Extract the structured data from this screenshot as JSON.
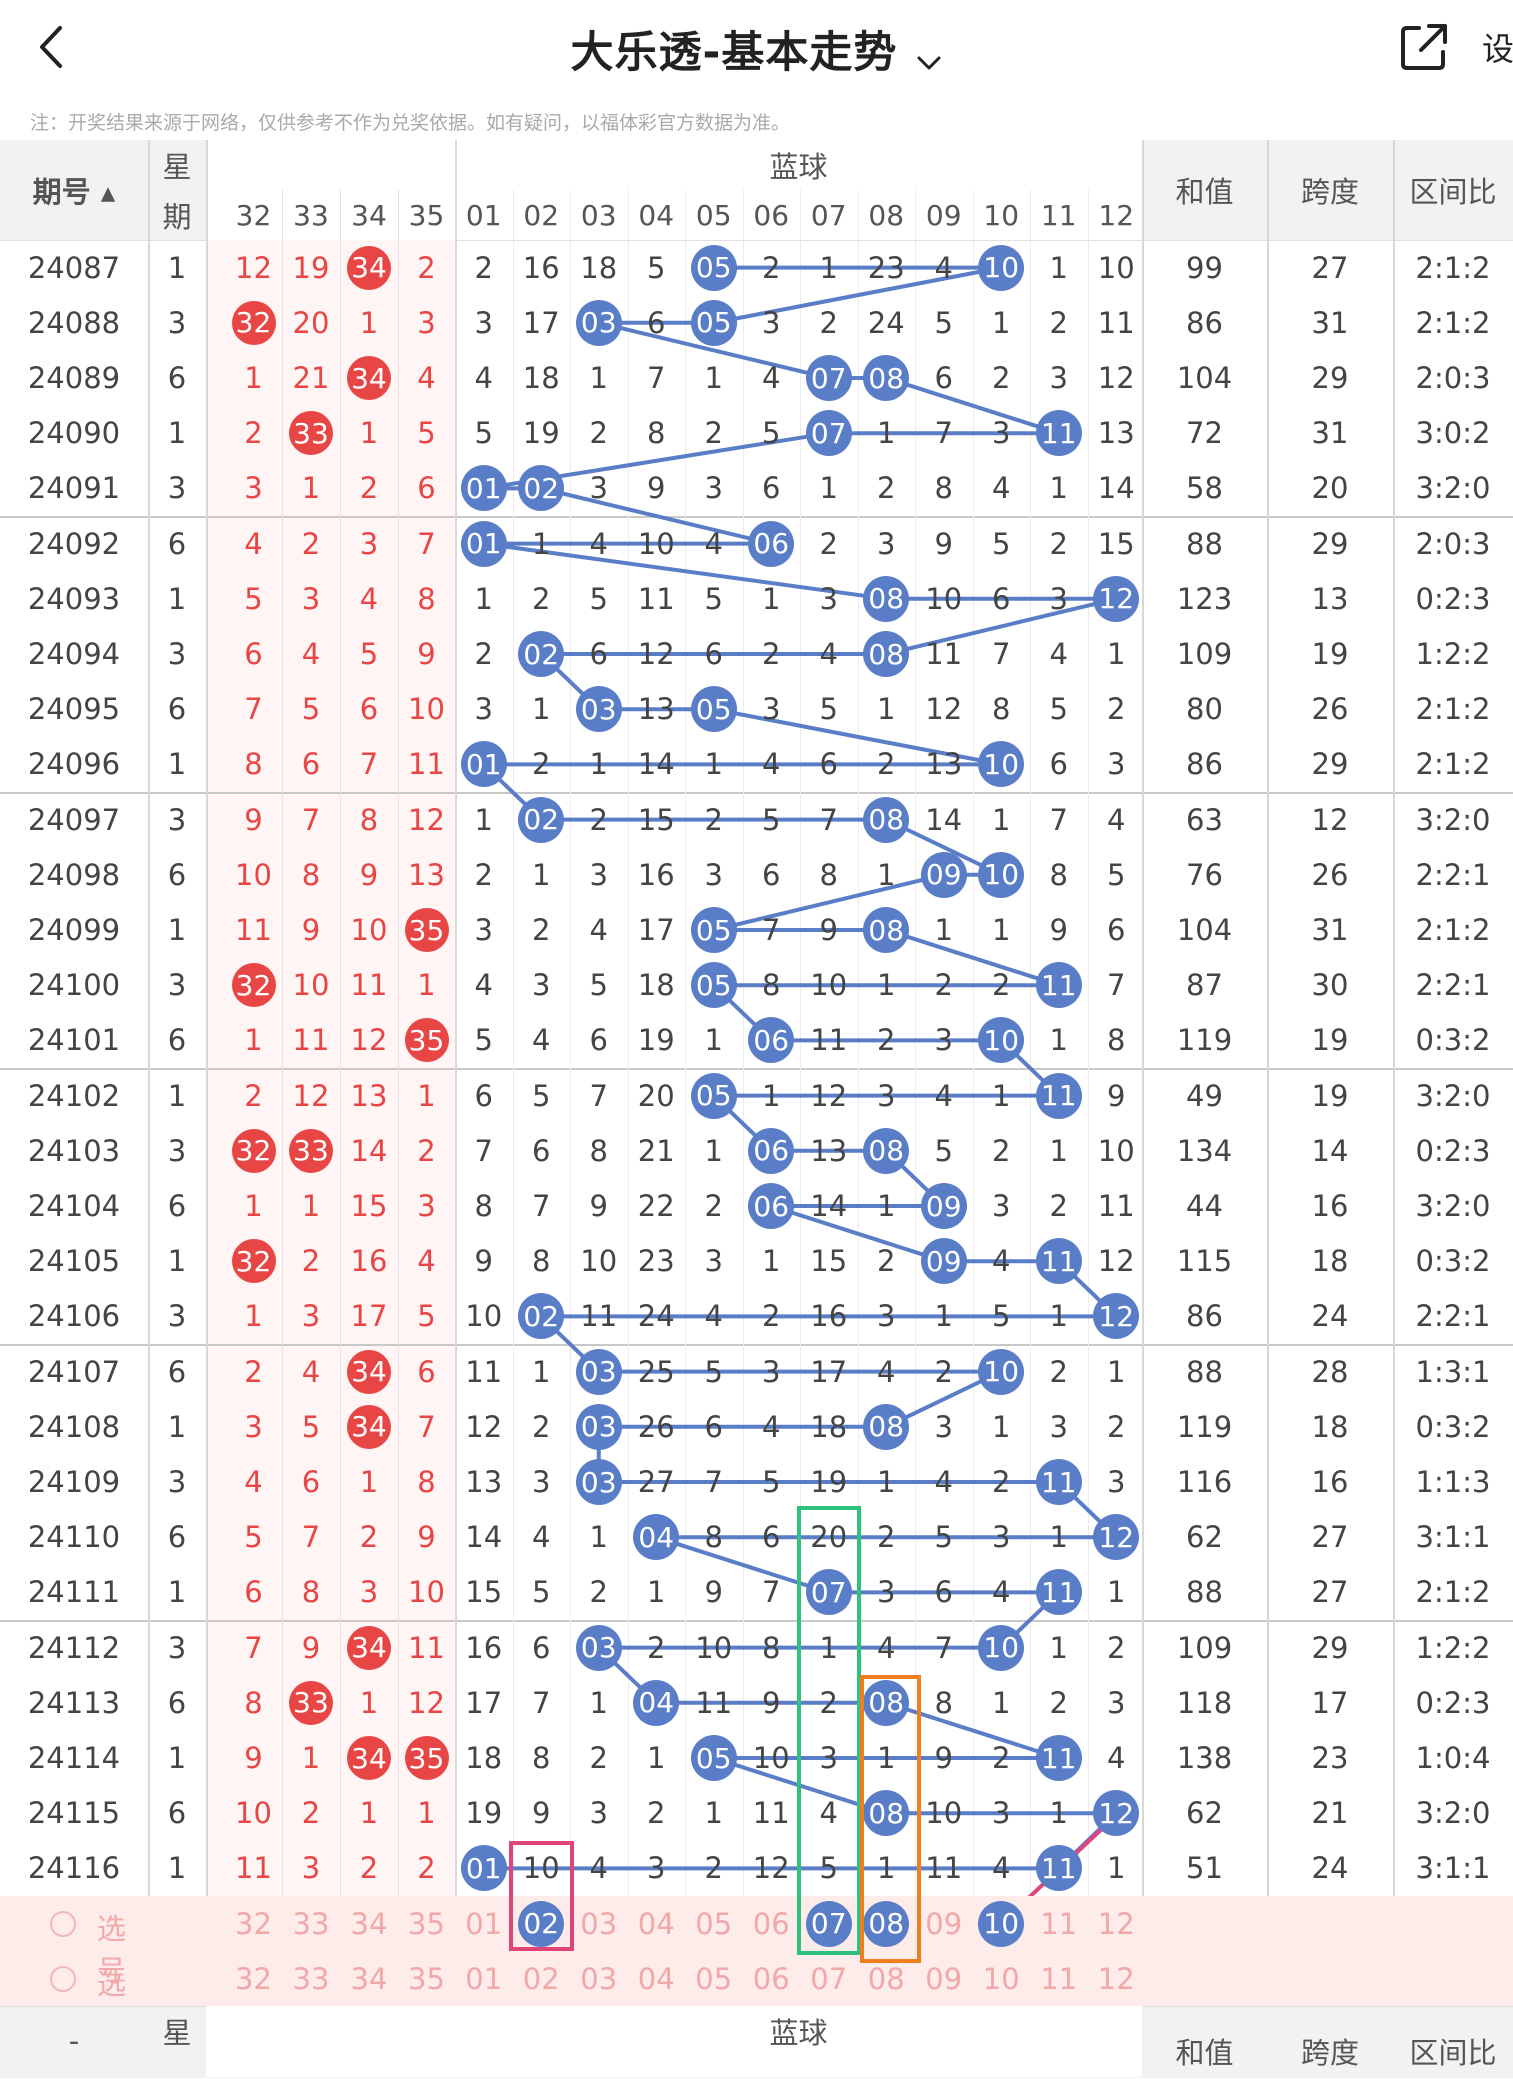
{
  "header": {
    "title": "大乐透-基本走势",
    "settings_label": "设",
    "notice": "注：开奖结果来源于网络，仅供参考不作为兑奖依据。如有疑问，以福体彩官方数据为准。"
  },
  "columns": {
    "issue": "期号",
    "week": "星期",
    "week_top": "星",
    "week_bottom": "期",
    "blue_group": "蓝球",
    "sum": "和值",
    "span": "跨度",
    "ratio": "区间比",
    "red_nums": [
      "32",
      "33",
      "34",
      "35"
    ],
    "blue_nums": [
      "01",
      "02",
      "03",
      "04",
      "05",
      "06",
      "07",
      "08",
      "09",
      "10",
      "11",
      "12"
    ]
  },
  "rows": [
    {
      "issue": "24087",
      "week": "1",
      "red": [
        "12",
        "19",
        "34",
        "2"
      ],
      "red_hit": [
        false,
        false,
        true,
        false
      ],
      "blue": [
        "2",
        "16",
        "18",
        "5",
        "05",
        "2",
        "1",
        "23",
        "4",
        "10",
        "1",
        "10"
      ],
      "blue_hit": [
        5,
        10
      ],
      "sum": "99",
      "span": "27",
      "ratio": "2:1:2"
    },
    {
      "issue": "24088",
      "week": "3",
      "red": [
        "32",
        "20",
        "1",
        "3"
      ],
      "red_hit": [
        true,
        false,
        false,
        false
      ],
      "blue": [
        "3",
        "17",
        "03",
        "6",
        "05",
        "3",
        "2",
        "24",
        "5",
        "1",
        "2",
        "11"
      ],
      "blue_hit": [
        3,
        5
      ],
      "sum": "86",
      "span": "31",
      "ratio": "2:1:2"
    },
    {
      "issue": "24089",
      "week": "6",
      "red": [
        "1",
        "21",
        "34",
        "4"
      ],
      "red_hit": [
        false,
        false,
        true,
        false
      ],
      "blue": [
        "4",
        "18",
        "1",
        "7",
        "1",
        "4",
        "07",
        "08",
        "6",
        "2",
        "3",
        "12"
      ],
      "blue_hit": [
        7,
        8
      ],
      "sum": "104",
      "span": "29",
      "ratio": "2:0:3"
    },
    {
      "issue": "24090",
      "week": "1",
      "red": [
        "2",
        "33",
        "1",
        "5"
      ],
      "red_hit": [
        false,
        true,
        false,
        false
      ],
      "blue": [
        "5",
        "19",
        "2",
        "8",
        "2",
        "5",
        "07",
        "1",
        "7",
        "3",
        "11",
        "13"
      ],
      "blue_hit": [
        7,
        11
      ],
      "sum": "72",
      "span": "31",
      "ratio": "3:0:2"
    },
    {
      "issue": "24091",
      "week": "3",
      "red": [
        "3",
        "1",
        "2",
        "6"
      ],
      "red_hit": [
        false,
        false,
        false,
        false
      ],
      "blue": [
        "01",
        "02",
        "3",
        "9",
        "3",
        "6",
        "1",
        "2",
        "8",
        "4",
        "1",
        "14"
      ],
      "blue_hit": [
        1,
        2
      ],
      "sum": "58",
      "span": "20",
      "ratio": "3:2:0"
    },
    {
      "issue": "24092",
      "week": "6",
      "red": [
        "4",
        "2",
        "3",
        "7"
      ],
      "red_hit": [
        false,
        false,
        false,
        false
      ],
      "blue": [
        "01",
        "1",
        "4",
        "10",
        "4",
        "06",
        "2",
        "3",
        "9",
        "5",
        "2",
        "15"
      ],
      "blue_hit": [
        1,
        6
      ],
      "sum": "88",
      "span": "29",
      "ratio": "2:0:3"
    },
    {
      "issue": "24093",
      "week": "1",
      "red": [
        "5",
        "3",
        "4",
        "8"
      ],
      "red_hit": [
        false,
        false,
        false,
        false
      ],
      "blue": [
        "1",
        "2",
        "5",
        "11",
        "5",
        "1",
        "3",
        "08",
        "10",
        "6",
        "3",
        "12"
      ],
      "blue_hit": [
        8,
        12
      ],
      "sum": "123",
      "span": "13",
      "ratio": "0:2:3"
    },
    {
      "issue": "24094",
      "week": "3",
      "red": [
        "6",
        "4",
        "5",
        "9"
      ],
      "red_hit": [
        false,
        false,
        false,
        false
      ],
      "blue": [
        "2",
        "02",
        "6",
        "12",
        "6",
        "2",
        "4",
        "08",
        "11",
        "7",
        "4",
        "1"
      ],
      "blue_hit": [
        2,
        8
      ],
      "sum": "109",
      "span": "19",
      "ratio": "1:2:2"
    },
    {
      "issue": "24095",
      "week": "6",
      "red": [
        "7",
        "5",
        "6",
        "10"
      ],
      "red_hit": [
        false,
        false,
        false,
        false
      ],
      "blue": [
        "3",
        "1",
        "03",
        "13",
        "05",
        "3",
        "5",
        "1",
        "12",
        "8",
        "5",
        "2"
      ],
      "blue_hit": [
        3,
        5
      ],
      "sum": "80",
      "span": "26",
      "ratio": "2:1:2"
    },
    {
      "issue": "24096",
      "week": "1",
      "red": [
        "8",
        "6",
        "7",
        "11"
      ],
      "red_hit": [
        false,
        false,
        false,
        false
      ],
      "blue": [
        "01",
        "2",
        "1",
        "14",
        "1",
        "4",
        "6",
        "2",
        "13",
        "10",
        "6",
        "3"
      ],
      "blue_hit": [
        1,
        10
      ],
      "sum": "86",
      "span": "29",
      "ratio": "2:1:2"
    },
    {
      "issue": "24097",
      "week": "3",
      "red": [
        "9",
        "7",
        "8",
        "12"
      ],
      "red_hit": [
        false,
        false,
        false,
        false
      ],
      "blue": [
        "1",
        "02",
        "2",
        "15",
        "2",
        "5",
        "7",
        "08",
        "14",
        "1",
        "7",
        "4"
      ],
      "blue_hit": [
        2,
        8
      ],
      "sum": "63",
      "span": "12",
      "ratio": "3:2:0"
    },
    {
      "issue": "24098",
      "week": "6",
      "red": [
        "10",
        "8",
        "9",
        "13"
      ],
      "red_hit": [
        false,
        false,
        false,
        false
      ],
      "blue": [
        "2",
        "1",
        "3",
        "16",
        "3",
        "6",
        "8",
        "1",
        "09",
        "10",
        "8",
        "5"
      ],
      "blue_hit": [
        9,
        10
      ],
      "sum": "76",
      "span": "26",
      "ratio": "2:2:1"
    },
    {
      "issue": "24099",
      "week": "1",
      "red": [
        "11",
        "9",
        "10",
        "35"
      ],
      "red_hit": [
        false,
        false,
        false,
        true
      ],
      "blue": [
        "3",
        "2",
        "4",
        "17",
        "05",
        "7",
        "9",
        "08",
        "1",
        "1",
        "9",
        "6"
      ],
      "blue_hit": [
        5,
        8
      ],
      "sum": "104",
      "span": "31",
      "ratio": "2:1:2"
    },
    {
      "issue": "24100",
      "week": "3",
      "red": [
        "32",
        "10",
        "11",
        "1"
      ],
      "red_hit": [
        true,
        false,
        false,
        false
      ],
      "blue": [
        "4",
        "3",
        "5",
        "18",
        "05",
        "8",
        "10",
        "1",
        "2",
        "2",
        "11",
        "7"
      ],
      "blue_hit": [
        5,
        11
      ],
      "sum": "87",
      "span": "30",
      "ratio": "2:2:1"
    },
    {
      "issue": "24101",
      "week": "6",
      "red": [
        "1",
        "11",
        "12",
        "35"
      ],
      "red_hit": [
        false,
        false,
        false,
        true
      ],
      "blue": [
        "5",
        "4",
        "6",
        "19",
        "1",
        "06",
        "11",
        "2",
        "3",
        "10",
        "1",
        "8"
      ],
      "blue_hit": [
        6,
        10
      ],
      "sum": "119",
      "span": "19",
      "ratio": "0:3:2"
    },
    {
      "issue": "24102",
      "week": "1",
      "red": [
        "2",
        "12",
        "13",
        "1"
      ],
      "red_hit": [
        false,
        false,
        false,
        false
      ],
      "blue": [
        "6",
        "5",
        "7",
        "20",
        "05",
        "1",
        "12",
        "3",
        "4",
        "1",
        "11",
        "9"
      ],
      "blue_hit": [
        5,
        11
      ],
      "sum": "49",
      "span": "19",
      "ratio": "3:2:0"
    },
    {
      "issue": "24103",
      "week": "3",
      "red": [
        "32",
        "33",
        "14",
        "2"
      ],
      "red_hit": [
        true,
        true,
        false,
        false
      ],
      "blue": [
        "7",
        "6",
        "8",
        "21",
        "1",
        "06",
        "13",
        "08",
        "5",
        "2",
        "1",
        "10"
      ],
      "blue_hit": [
        6,
        8
      ],
      "sum": "134",
      "span": "14",
      "ratio": "0:2:3"
    },
    {
      "issue": "24104",
      "week": "6",
      "red": [
        "1",
        "1",
        "15",
        "3"
      ],
      "red_hit": [
        false,
        false,
        false,
        false
      ],
      "blue": [
        "8",
        "7",
        "9",
        "22",
        "2",
        "06",
        "14",
        "1",
        "09",
        "3",
        "2",
        "11"
      ],
      "blue_hit": [
        6,
        9
      ],
      "sum": "44",
      "span": "16",
      "ratio": "3:2:0"
    },
    {
      "issue": "24105",
      "week": "1",
      "red": [
        "32",
        "2",
        "16",
        "4"
      ],
      "red_hit": [
        true,
        false,
        false,
        false
      ],
      "blue": [
        "9",
        "8",
        "10",
        "23",
        "3",
        "1",
        "15",
        "2",
        "09",
        "4",
        "11",
        "12"
      ],
      "blue_hit": [
        9,
        11
      ],
      "sum": "115",
      "span": "18",
      "ratio": "0:3:2"
    },
    {
      "issue": "24106",
      "week": "3",
      "red": [
        "1",
        "3",
        "17",
        "5"
      ],
      "red_hit": [
        false,
        false,
        false,
        false
      ],
      "blue": [
        "10",
        "02",
        "11",
        "24",
        "4",
        "2",
        "16",
        "3",
        "1",
        "5",
        "1",
        "12"
      ],
      "blue_hit": [
        2,
        12
      ],
      "sum": "86",
      "span": "24",
      "ratio": "2:2:1"
    },
    {
      "issue": "24107",
      "week": "6",
      "red": [
        "2",
        "4",
        "34",
        "6"
      ],
      "red_hit": [
        false,
        false,
        true,
        false
      ],
      "blue": [
        "11",
        "1",
        "03",
        "25",
        "5",
        "3",
        "17",
        "4",
        "2",
        "10",
        "2",
        "1"
      ],
      "blue_hit": [
        3,
        10
      ],
      "sum": "88",
      "span": "28",
      "ratio": "1:3:1"
    },
    {
      "issue": "24108",
      "week": "1",
      "red": [
        "3",
        "5",
        "34",
        "7"
      ],
      "red_hit": [
        false,
        false,
        true,
        false
      ],
      "blue": [
        "12",
        "2",
        "03",
        "26",
        "6",
        "4",
        "18",
        "08",
        "3",
        "1",
        "3",
        "2"
      ],
      "blue_hit": [
        3,
        8
      ],
      "sum": "119",
      "span": "18",
      "ratio": "0:3:2"
    },
    {
      "issue": "24109",
      "week": "3",
      "red": [
        "4",
        "6",
        "1",
        "8"
      ],
      "red_hit": [
        false,
        false,
        false,
        false
      ],
      "blue": [
        "13",
        "3",
        "03",
        "27",
        "7",
        "5",
        "19",
        "1",
        "4",
        "2",
        "11",
        "3"
      ],
      "blue_hit": [
        3,
        11
      ],
      "sum": "116",
      "span": "16",
      "ratio": "1:1:3"
    },
    {
      "issue": "24110",
      "week": "6",
      "red": [
        "5",
        "7",
        "2",
        "9"
      ],
      "red_hit": [
        false,
        false,
        false,
        false
      ],
      "blue": [
        "14",
        "4",
        "1",
        "04",
        "8",
        "6",
        "20",
        "2",
        "5",
        "3",
        "1",
        "12"
      ],
      "blue_hit": [
        4,
        12
      ],
      "sum": "62",
      "span": "27",
      "ratio": "3:1:1"
    },
    {
      "issue": "24111",
      "week": "1",
      "red": [
        "6",
        "8",
        "3",
        "10"
      ],
      "red_hit": [
        false,
        false,
        false,
        false
      ],
      "blue": [
        "15",
        "5",
        "2",
        "1",
        "9",
        "7",
        "07",
        "3",
        "6",
        "4",
        "11",
        "1"
      ],
      "blue_hit": [
        7,
        11
      ],
      "sum": "88",
      "span": "27",
      "ratio": "2:1:2"
    },
    {
      "issue": "24112",
      "week": "3",
      "red": [
        "7",
        "9",
        "34",
        "11"
      ],
      "red_hit": [
        false,
        false,
        true,
        false
      ],
      "blue": [
        "16",
        "6",
        "03",
        "2",
        "10",
        "8",
        "1",
        "4",
        "7",
        "10",
        "1",
        "2"
      ],
      "blue_hit": [
        3,
        10
      ],
      "sum": "109",
      "span": "29",
      "ratio": "1:2:2"
    },
    {
      "issue": "24113",
      "week": "6",
      "red": [
        "8",
        "33",
        "1",
        "12"
      ],
      "red_hit": [
        false,
        true,
        false,
        false
      ],
      "blue": [
        "17",
        "7",
        "1",
        "04",
        "11",
        "9",
        "2",
        "08",
        "8",
        "1",
        "2",
        "3"
      ],
      "blue_hit": [
        4,
        8
      ],
      "sum": "118",
      "span": "17",
      "ratio": "0:2:3"
    },
    {
      "issue": "24114",
      "week": "1",
      "red": [
        "9",
        "1",
        "34",
        "35"
      ],
      "red_hit": [
        false,
        false,
        true,
        true
      ],
      "blue": [
        "18",
        "8",
        "2",
        "1",
        "05",
        "10",
        "3",
        "1",
        "9",
        "2",
        "11",
        "4"
      ],
      "blue_hit": [
        5,
        11
      ],
      "sum": "138",
      "span": "23",
      "ratio": "1:0:4"
    },
    {
      "issue": "24115",
      "week": "6",
      "red": [
        "10",
        "2",
        "1",
        "1"
      ],
      "red_hit": [
        false,
        false,
        false,
        false
      ],
      "blue": [
        "19",
        "9",
        "3",
        "2",
        "1",
        "11",
        "4",
        "08",
        "10",
        "3",
        "1",
        "12"
      ],
      "blue_hit": [
        8,
        12
      ],
      "sum": "62",
      "span": "21",
      "ratio": "3:2:0"
    },
    {
      "issue": "24116",
      "week": "1",
      "red": [
        "11",
        "3",
        "2",
        "2"
      ],
      "red_hit": [
        false,
        false,
        false,
        false
      ],
      "blue": [
        "01",
        "10",
        "4",
        "3",
        "2",
        "12",
        "5",
        "1",
        "11",
        "4",
        "11",
        "1"
      ],
      "blue_hit": [
        1,
        11
      ],
      "sum": "51",
      "span": "24",
      "ratio": "3:1:1"
    }
  ],
  "pick_rows": [
    {
      "label": "选号",
      "selected_blue": [
        2,
        7,
        8,
        10
      ]
    },
    {
      "label": "选号",
      "selected_blue": []
    }
  ],
  "footer": {
    "issue_placeholder": "-"
  },
  "colors": {
    "red_ball": "#e84545",
    "blue_ball": "#5a7dc8",
    "line": "#5a7dc8",
    "box_pink": "#e0457a",
    "box_green": "#2ec27e",
    "box_orange": "#f07d1e",
    "pink_line": "#e0457a"
  }
}
